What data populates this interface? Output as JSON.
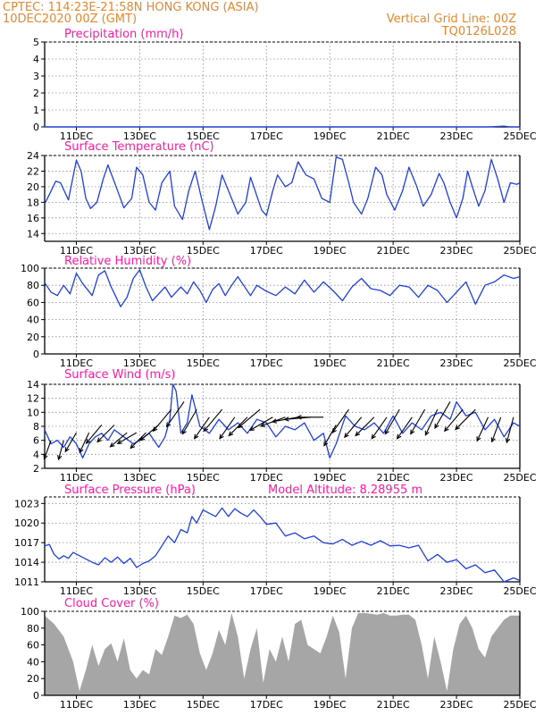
{
  "header": {
    "line1_left": "CPTEC:   114:23E-21:58N   HONG KONG (ASIA)",
    "line2_left": "10DEC2020 00Z (GMT)",
    "line1_right": "Vertical Grid Line: 00Z",
    "line2_right": "TQ0126L028"
  },
  "colors": {
    "header": "#e8862a",
    "panel_title": "#ff1aa5",
    "series_line": "#1f3fe0",
    "wind_barb": "#000000",
    "cloud_fill": "#a6a6a6",
    "grid": "#8c8c8c"
  },
  "x_axis": {
    "start_day": 10.0,
    "end_day": 25.0,
    "tick_days": [
      11,
      13,
      15,
      17,
      19,
      21,
      23,
      25
    ],
    "tick_labels": [
      "11DEC",
      "13DEC",
      "15DEC",
      "17DEC",
      "19DEC",
      "21DEC",
      "23DEC",
      "25DEC"
    ]
  },
  "chart_data": [
    {
      "id": "precip",
      "type": "line",
      "title": "Precipitation (mm/h)",
      "ylim": [
        0,
        5
      ],
      "yticks": [
        0,
        1,
        2,
        3,
        4,
        5
      ],
      "grid": true,
      "x": [
        10.0,
        12.0,
        14.0,
        16.0,
        18.0,
        20.0,
        22.0,
        24.0,
        24.5,
        24.7,
        25.0
      ],
      "y": [
        0,
        0,
        0,
        0,
        0,
        0,
        0,
        0,
        0.05,
        0,
        0
      ]
    },
    {
      "id": "temp",
      "type": "line",
      "title": "Surface Temperature (nC)",
      "ylim": [
        13,
        24
      ],
      "yticks": [
        14,
        16,
        18,
        20,
        22,
        24
      ],
      "grid": true,
      "x": [
        10.0,
        10.15,
        10.35,
        10.5,
        10.75,
        11.0,
        11.15,
        11.3,
        11.45,
        11.65,
        11.85,
        12.0,
        12.3,
        12.5,
        12.75,
        12.9,
        13.1,
        13.3,
        13.5,
        13.7,
        13.95,
        14.1,
        14.35,
        14.55,
        14.75,
        14.95,
        15.2,
        15.4,
        15.6,
        15.85,
        16.1,
        16.35,
        16.5,
        16.6,
        16.85,
        17.0,
        17.2,
        17.35,
        17.6,
        17.8,
        18.0,
        18.25,
        18.5,
        18.75,
        19.0,
        19.2,
        19.4,
        19.6,
        19.75,
        20.0,
        20.2,
        20.45,
        20.65,
        20.8,
        21.05,
        21.3,
        21.5,
        21.75,
        21.95,
        22.2,
        22.45,
        22.6,
        22.8,
        23.0,
        23.2,
        23.35,
        23.5,
        23.7,
        23.9,
        24.1,
        24.3,
        24.5,
        24.7,
        24.9,
        25.0
      ],
      "y": [
        17.8,
        19.0,
        20.7,
        20.5,
        18.3,
        23.4,
        22.0,
        18.5,
        17.2,
        18.0,
        21.0,
        22.8,
        19.5,
        17.3,
        18.5,
        22.5,
        21.5,
        18.0,
        17.0,
        20.5,
        22.0,
        17.5,
        15.8,
        19.5,
        22.0,
        18.5,
        14.5,
        17.5,
        21.5,
        19.0,
        16.5,
        18.0,
        21.2,
        20.0,
        17.0,
        16.3,
        19.5,
        21.5,
        20.0,
        20.5,
        23.2,
        21.5,
        21.0,
        18.5,
        18.0,
        23.8,
        23.5,
        20.5,
        18.0,
        16.5,
        18.5,
        22.5,
        21.5,
        19.0,
        17.0,
        19.5,
        22.5,
        20.0,
        17.5,
        19.0,
        21.7,
        20.5,
        18.0,
        16.0,
        18.5,
        22.0,
        20.0,
        17.5,
        19.5,
        23.5,
        21.0,
        18.0,
        20.5,
        20.3,
        20.5
      ]
    },
    {
      "id": "rh",
      "type": "line",
      "title": "Relative Humidity (%)",
      "ylim": [
        0,
        100
      ],
      "yticks": [
        0,
        20,
        40,
        60,
        80,
        100
      ],
      "grid": true,
      "x": [
        10.0,
        10.2,
        10.4,
        10.6,
        10.8,
        11.0,
        11.2,
        11.5,
        11.7,
        11.9,
        12.1,
        12.4,
        12.6,
        12.8,
        13.0,
        13.2,
        13.4,
        13.6,
        13.8,
        14.0,
        14.3,
        14.5,
        14.7,
        14.9,
        15.1,
        15.3,
        15.5,
        15.7,
        15.9,
        16.1,
        16.3,
        16.5,
        16.7,
        17.0,
        17.3,
        17.6,
        17.9,
        18.2,
        18.5,
        18.8,
        19.1,
        19.4,
        19.7,
        20.0,
        20.3,
        20.6,
        20.9,
        21.2,
        21.5,
        21.8,
        22.1,
        22.4,
        22.7,
        23.0,
        23.3,
        23.6,
        23.9,
        24.2,
        24.5,
        24.8,
        25.0
      ],
      "y": [
        83,
        72,
        68,
        80,
        70,
        94,
        82,
        68,
        92,
        97,
        78,
        55,
        66,
        88,
        98,
        78,
        62,
        70,
        78,
        66,
        78,
        70,
        84,
        74,
        60,
        75,
        82,
        68,
        80,
        90,
        79,
        68,
        80,
        73,
        68,
        78,
        70,
        86,
        72,
        84,
        74,
        62,
        78,
        88,
        76,
        74,
        68,
        80,
        78,
        66,
        80,
        74,
        60,
        72,
        84,
        58,
        80,
        84,
        92,
        88,
        90
      ]
    },
    {
      "id": "wind",
      "type": "line",
      "title": "Surface Wind (m/s)",
      "ylim": [
        2,
        14
      ],
      "yticks": [
        2,
        4,
        6,
        8,
        10,
        12,
        14
      ],
      "grid": true,
      "x": [
        10.0,
        10.2,
        10.4,
        10.6,
        10.8,
        11.0,
        11.2,
        11.4,
        11.6,
        11.8,
        12.0,
        12.2,
        12.5,
        12.8,
        13.0,
        13.3,
        13.6,
        13.8,
        13.95,
        14.05,
        14.15,
        14.3,
        14.5,
        14.65,
        14.9,
        15.2,
        15.5,
        15.8,
        16.1,
        16.4,
        16.7,
        17.0,
        17.3,
        17.6,
        17.9,
        18.2,
        18.5,
        18.8,
        19.0,
        19.2,
        19.5,
        19.8,
        20.1,
        20.4,
        20.7,
        21.0,
        21.3,
        21.6,
        21.9,
        22.2,
        22.5,
        22.8,
        23.0,
        23.3,
        23.6,
        23.9,
        24.2,
        24.5,
        24.8,
        25.0
      ],
      "y": [
        7.5,
        5.5,
        6.0,
        5.0,
        6.5,
        5.5,
        3.5,
        5.5,
        6.5,
        7.0,
        6.0,
        7.5,
        6.5,
        5.5,
        6.0,
        7.0,
        5.0,
        6.5,
        9.0,
        14.0,
        13.0,
        7.0,
        8.5,
        12.5,
        8.0,
        7.0,
        9.0,
        7.5,
        8.5,
        7.0,
        9.0,
        8.5,
        6.5,
        8.0,
        7.5,
        8.5,
        6.0,
        7.0,
        3.5,
        5.5,
        9.5,
        8.0,
        7.5,
        8.5,
        7.0,
        9.5,
        7.0,
        8.5,
        7.5,
        9.5,
        10.0,
        9.0,
        11.5,
        9.5,
        10.0,
        7.5,
        9.0,
        6.5,
        8.5,
        8.0
      ],
      "barb_x": [
        10.2,
        10.6,
        11.0,
        11.4,
        11.8,
        12.2,
        12.6,
        12.9,
        13.2,
        13.6,
        14.0,
        14.4,
        14.8,
        15.2,
        15.6,
        16.0,
        16.4,
        16.8,
        17.2,
        17.6,
        18.0,
        18.4,
        18.8,
        19.2,
        19.6,
        20.0,
        20.4,
        20.8,
        21.2,
        21.6,
        22.0,
        22.4,
        22.8,
        23.2,
        23.6,
        24.0,
        24.4,
        24.8
      ],
      "barb_dir_deg": [
        20,
        15,
        30,
        25,
        40,
        45,
        50,
        60,
        45,
        50,
        40,
        35,
        30,
        35,
        40,
        35,
        45,
        50,
        60,
        70,
        80,
        85,
        90,
        30,
        35,
        40,
        45,
        35,
        30,
        35,
        30,
        25,
        30,
        40,
        45,
        25,
        20,
        15
      ],
      "barb_speed": [
        5,
        5,
        6,
        6,
        7,
        7,
        6,
        6,
        6,
        7,
        9,
        10,
        9,
        8,
        9,
        8,
        8,
        9,
        8,
        8,
        8,
        8,
        8,
        7,
        9,
        8,
        8,
        8,
        9,
        8,
        9,
        9,
        10,
        9,
        9,
        8,
        8,
        8
      ]
    },
    {
      "id": "pressure",
      "type": "line",
      "title": "Surface Pressure (hPa)",
      "annotation": "Model Altitude: 8.28955 m",
      "ylim": [
        1011,
        1024
      ],
      "yticks": [
        1011,
        1014,
        1017,
        1020,
        1023
      ],
      "grid": true,
      "x": [
        10.0,
        10.15,
        10.3,
        10.45,
        10.6,
        10.75,
        10.9,
        11.1,
        11.3,
        11.5,
        11.7,
        11.9,
        12.1,
        12.3,
        12.5,
        12.7,
        12.9,
        13.1,
        13.3,
        13.5,
        13.7,
        13.9,
        14.1,
        14.3,
        14.5,
        14.65,
        14.8,
        15.0,
        15.2,
        15.4,
        15.6,
        15.8,
        16.0,
        16.2,
        16.4,
        16.6,
        16.8,
        17.0,
        17.3,
        17.6,
        17.9,
        18.2,
        18.5,
        18.8,
        19.1,
        19.4,
        19.7,
        20.0,
        20.3,
        20.6,
        20.9,
        21.2,
        21.5,
        21.8,
        22.1,
        22.4,
        22.7,
        23.0,
        23.3,
        23.6,
        23.9,
        24.2,
        24.5,
        24.8,
        25.0
      ],
      "y": [
        1016.5,
        1016.7,
        1015.2,
        1014.5,
        1015.0,
        1014.6,
        1015.5,
        1015.0,
        1014.5,
        1014.0,
        1013.6,
        1014.7,
        1014.0,
        1014.8,
        1013.8,
        1014.6,
        1013.2,
        1013.8,
        1014.2,
        1015.0,
        1016.5,
        1018.0,
        1017.0,
        1019.0,
        1018.5,
        1021.0,
        1020.0,
        1022.0,
        1021.5,
        1021.0,
        1022.3,
        1021.0,
        1022.2,
        1021.5,
        1021.0,
        1022.0,
        1021.0,
        1019.8,
        1020.0,
        1018.0,
        1018.5,
        1017.6,
        1018.0,
        1017.0,
        1016.8,
        1017.5,
        1016.6,
        1017.2,
        1016.6,
        1017.3,
        1016.5,
        1016.6,
        1016.2,
        1016.6,
        1014.2,
        1015.2,
        1014.0,
        1014.4,
        1013.0,
        1013.6,
        1012.4,
        1012.8,
        1011.0,
        1011.6,
        1011.2
      ]
    },
    {
      "id": "cloud",
      "type": "area",
      "title": "Cloud Cover (%)",
      "ylim": [
        0,
        100
      ],
      "yticks": [
        0,
        20,
        40,
        60,
        80,
        100
      ],
      "grid": false,
      "x": [
        10.0,
        10.3,
        10.6,
        10.9,
        11.1,
        11.3,
        11.5,
        11.7,
        11.9,
        12.1,
        12.3,
        12.5,
        12.7,
        12.9,
        13.1,
        13.3,
        13.5,
        13.7,
        13.9,
        14.1,
        14.3,
        14.5,
        14.7,
        14.9,
        15.1,
        15.3,
        15.5,
        15.7,
        15.9,
        16.1,
        16.3,
        16.5,
        16.7,
        16.9,
        17.1,
        17.3,
        17.5,
        17.7,
        17.9,
        18.1,
        18.3,
        18.5,
        18.7,
        18.9,
        19.1,
        19.3,
        19.5,
        19.7,
        19.9,
        20.1,
        20.3,
        20.5,
        20.7,
        20.9,
        21.1,
        21.3,
        21.5,
        21.7,
        21.9,
        22.1,
        22.3,
        22.5,
        22.7,
        22.9,
        23.1,
        23.3,
        23.5,
        23.7,
        23.9,
        24.1,
        24.3,
        24.5,
        24.7,
        24.9,
        25.0
      ],
      "y": [
        95,
        85,
        70,
        40,
        5,
        30,
        60,
        35,
        55,
        62,
        40,
        68,
        30,
        20,
        30,
        25,
        55,
        48,
        70,
        95,
        92,
        96,
        85,
        50,
        30,
        50,
        78,
        60,
        98,
        70,
        20,
        55,
        80,
        15,
        55,
        40,
        70,
        40,
        85,
        90,
        60,
        55,
        50,
        70,
        95,
        75,
        20,
        80,
        98,
        98,
        97,
        96,
        98,
        95,
        95,
        96,
        96,
        90,
        60,
        20,
        70,
        40,
        5,
        55,
        85,
        95,
        80,
        55,
        45,
        70,
        80,
        90,
        95,
        95,
        95
      ]
    }
  ]
}
